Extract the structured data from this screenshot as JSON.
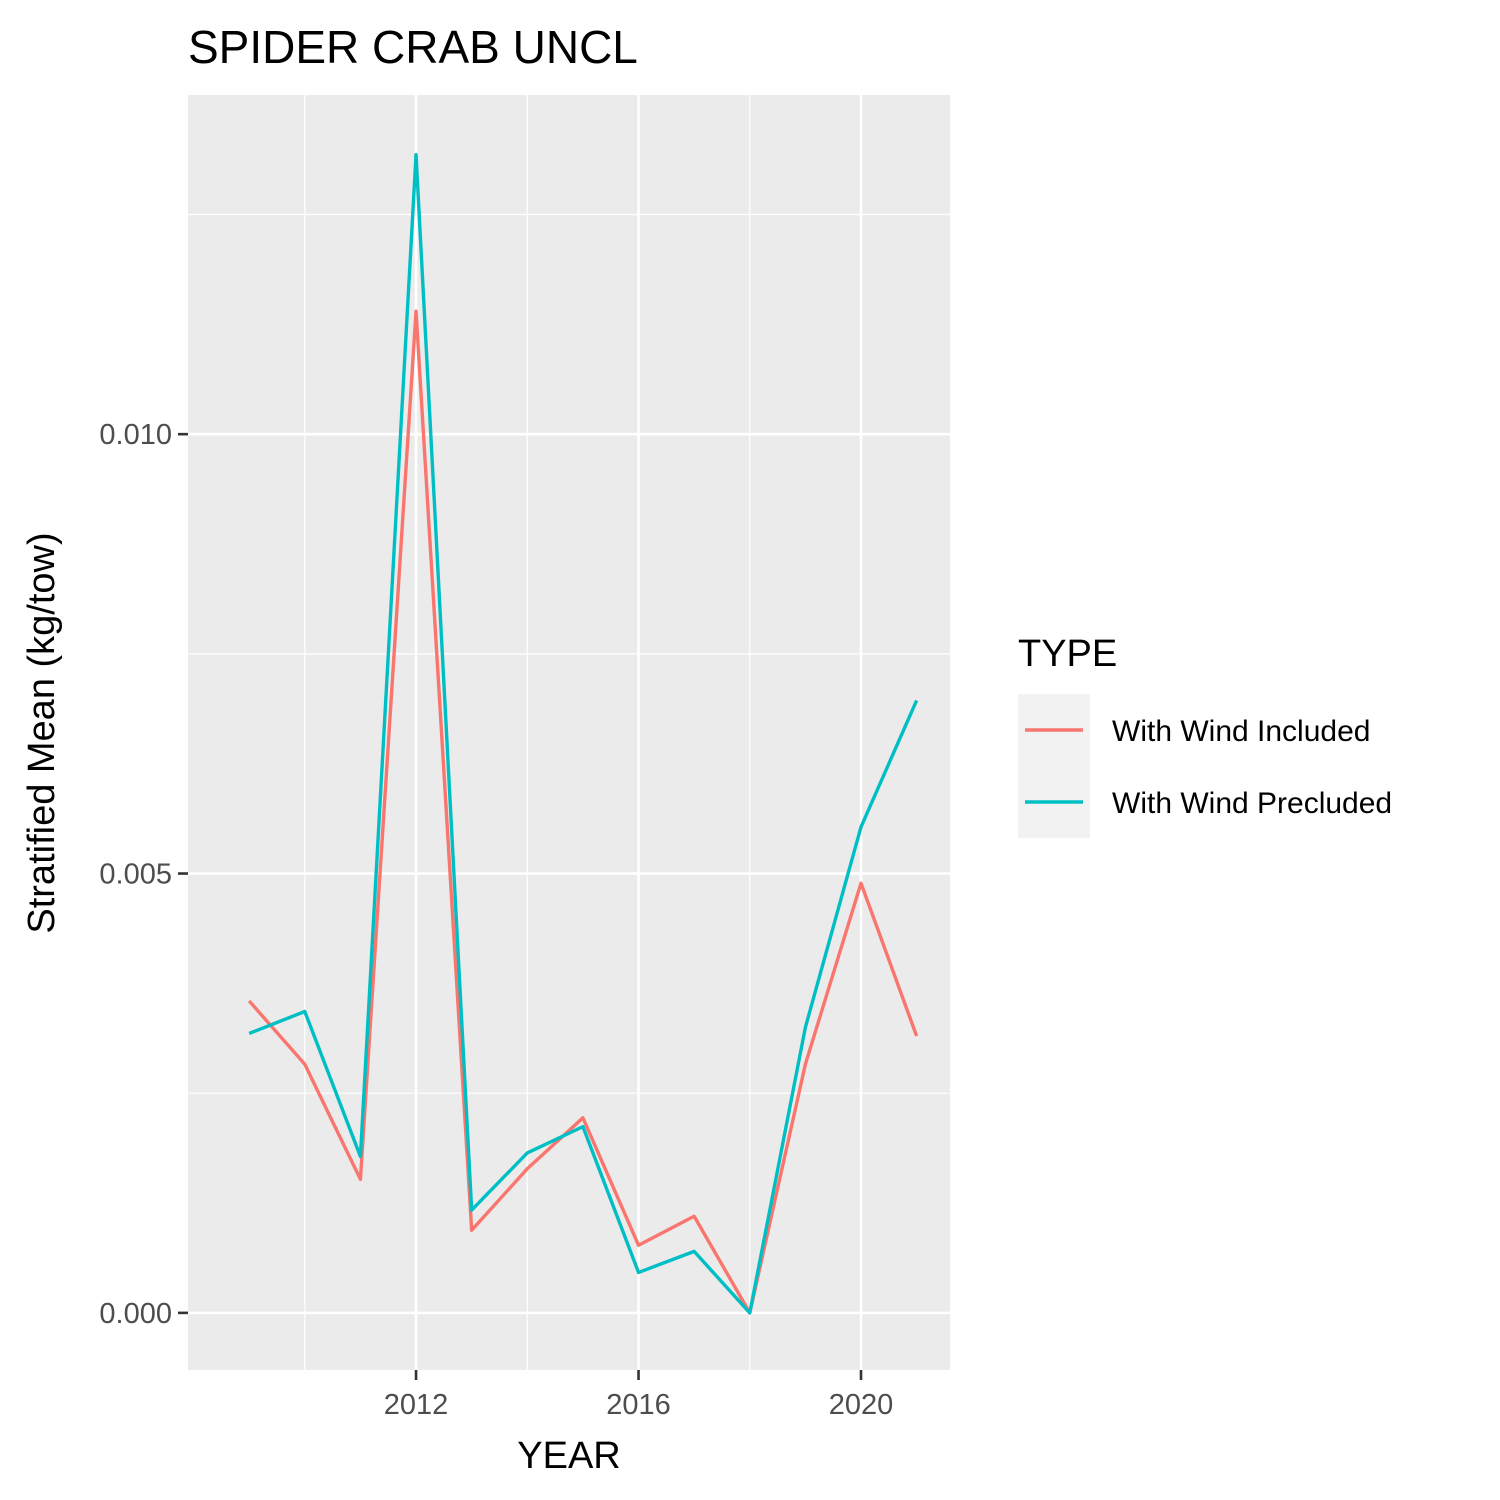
{
  "chart_data": {
    "type": "line",
    "title": "SPIDER CRAB UNCL",
    "xlabel": "YEAR",
    "ylabel": "Stratified Mean (kg/tow)",
    "x": [
      2009,
      2010,
      2011,
      2012,
      2013,
      2014,
      2015,
      2016,
      2017,
      2018,
      2019,
      2020,
      2021
    ],
    "x_ticks": [
      2012,
      2016,
      2020
    ],
    "x_tick_labels": [
      "2012",
      "2016",
      "2020"
    ],
    "y_ticks": [
      0.0,
      0.005,
      0.01
    ],
    "y_tick_labels": [
      "0.000",
      "0.005",
      "0.010"
    ],
    "xlim": [
      2007.9,
      2021.6
    ],
    "ylim": [
      -0.00065,
      0.01386
    ],
    "grid": true,
    "legend": {
      "title": "TYPE",
      "position": "right"
    },
    "series": [
      {
        "name": "With Wind Included",
        "color": "#F8766D",
        "values": [
          0.00355,
          0.00283,
          0.00152,
          0.0114,
          0.00094,
          0.00164,
          0.00222,
          0.00077,
          0.0011,
          0.0,
          0.00283,
          0.00489,
          0.00315
        ]
      },
      {
        "name": "With Wind Precluded",
        "color": "#00BFC4",
        "values": [
          0.00318,
          0.00343,
          0.00178,
          0.01318,
          0.00117,
          0.00182,
          0.00212,
          0.00046,
          0.0007,
          0.0,
          0.00325,
          0.00553,
          0.00697
        ]
      }
    ]
  }
}
